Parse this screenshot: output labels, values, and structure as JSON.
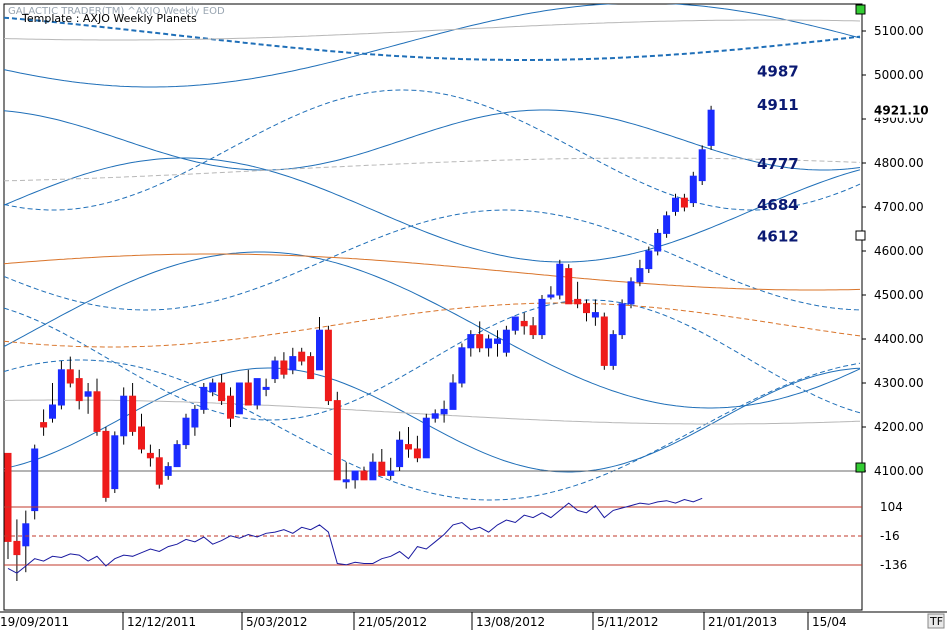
{
  "header": {
    "app": "GALACTIC TRADER(TM)",
    "symbol": "^AXJO Weekly EOD",
    "template": "Template : AXJO Weekly Planets"
  },
  "last_price": "4921.10",
  "corner_badge": "TF",
  "colors": {
    "up_candle": "#1a2bff",
    "down_candle": "#ee1b1b",
    "planet_blue": "#1f6fb8",
    "planet_orange": "#d9742a",
    "planet_gray": "#b7b7b7",
    "indicator": "#1a1aa0",
    "ref_line": "#c0392b"
  },
  "chart_data": {
    "type": "candlestick",
    "price_axis": {
      "min": 4000,
      "max": 5200,
      "ticks": [
        "5100.00",
        "5000.00",
        "4900.00",
        "4800.00",
        "4700.00",
        "4600.00",
        "4500.00",
        "4400.00",
        "4300.00",
        "4200.00",
        "4100.00"
      ]
    },
    "indicator_axis": {
      "ticks": [
        "104",
        "-16",
        "-136"
      ]
    },
    "x_labels": [
      "19/09/2011",
      "12/12/2011",
      "5/03/2012",
      "21/05/2012",
      "13/08/2012",
      "5/11/2012",
      "21/01/2013",
      "15/04"
    ],
    "level_labels": [
      {
        "text": "4987",
        "value": 4987
      },
      {
        "text": "4911",
        "value": 4911
      },
      {
        "text": "4777",
        "value": 4777
      },
      {
        "text": "4684",
        "value": 4684
      },
      {
        "text": "4612",
        "value": 4612
      }
    ],
    "candles": [
      [
        4140,
        4140,
        3900,
        3940
      ],
      [
        3940,
        3990,
        3850,
        3910
      ],
      [
        3930,
        4010,
        3870,
        3980
      ],
      [
        4010,
        4160,
        3990,
        4150
      ],
      [
        4210,
        4240,
        4180,
        4200
      ],
      [
        4220,
        4300,
        4210,
        4250
      ],
      [
        4250,
        4350,
        4240,
        4330
      ],
      [
        4330,
        4360,
        4290,
        4300
      ],
      [
        4310,
        4330,
        4240,
        4260
      ],
      [
        4270,
        4300,
        4230,
        4280
      ],
      [
        4280,
        4310,
        4180,
        4190
      ],
      [
        4190,
        4200,
        4030,
        4040
      ],
      [
        4060,
        4190,
        4050,
        4180
      ],
      [
        4180,
        4290,
        4160,
        4270
      ],
      [
        4270,
        4300,
        4180,
        4190
      ],
      [
        4200,
        4230,
        4140,
        4150
      ],
      [
        4140,
        4160,
        4110,
        4130
      ],
      [
        4130,
        4150,
        4060,
        4070
      ],
      [
        4090,
        4120,
        4080,
        4110
      ],
      [
        4110,
        4170,
        4110,
        4160
      ],
      [
        4160,
        4230,
        4150,
        4220
      ],
      [
        4200,
        4250,
        4180,
        4240
      ],
      [
        4240,
        4300,
        4230,
        4290
      ],
      [
        4280,
        4310,
        4270,
        4300
      ],
      [
        4300,
        4320,
        4250,
        4260
      ],
      [
        4270,
        4290,
        4200,
        4220
      ],
      [
        4230,
        4300,
        4230,
        4300
      ],
      [
        4300,
        4330,
        4250,
        4250
      ],
      [
        4250,
        4310,
        4240,
        4310
      ],
      [
        4290,
        4310,
        4270,
        4290
      ],
      [
        4310,
        4360,
        4300,
        4350
      ],
      [
        4350,
        4370,
        4310,
        4320
      ],
      [
        4330,
        4380,
        4320,
        4360
      ],
      [
        4370,
        4380,
        4340,
        4350
      ],
      [
        4360,
        4370,
        4310,
        4310
      ],
      [
        4330,
        4450,
        4330,
        4420
      ],
      [
        4420,
        4430,
        4250,
        4260
      ],
      [
        4260,
        4280,
        4080,
        4080
      ],
      [
        4080,
        4120,
        4060,
        4080
      ],
      [
        4080,
        4100,
        4060,
        4100
      ],
      [
        4100,
        4110,
        4080,
        4080
      ],
      [
        4080,
        4140,
        4080,
        4120
      ],
      [
        4120,
        4150,
        4090,
        4090
      ],
      [
        4090,
        4130,
        4080,
        4100
      ],
      [
        4110,
        4190,
        4100,
        4170
      ],
      [
        4160,
        4200,
        4130,
        4150
      ],
      [
        4150,
        4180,
        4120,
        4130
      ],
      [
        4130,
        4230,
        4130,
        4220
      ],
      [
        4220,
        4240,
        4210,
        4230
      ],
      [
        4230,
        4260,
        4210,
        4240
      ],
      [
        4240,
        4320,
        4240,
        4300
      ],
      [
        4300,
        4390,
        4290,
        4380
      ],
      [
        4380,
        4420,
        4360,
        4410
      ],
      [
        4410,
        4440,
        4370,
        4380
      ],
      [
        4380,
        4410,
        4360,
        4400
      ],
      [
        4390,
        4420,
        4360,
        4400
      ],
      [
        4370,
        4430,
        4360,
        4420
      ],
      [
        4420,
        4450,
        4410,
        4450
      ],
      [
        4440,
        4460,
        4410,
        4430
      ],
      [
        4430,
        4450,
        4400,
        4410
      ],
      [
        4410,
        4500,
        4400,
        4490
      ],
      [
        4500,
        4520,
        4490,
        4500
      ],
      [
        4500,
        4580,
        4490,
        4570
      ],
      [
        4560,
        4570,
        4480,
        4480
      ],
      [
        4490,
        4530,
        4470,
        4480
      ],
      [
        4480,
        4490,
        4440,
        4460
      ],
      [
        4450,
        4490,
        4430,
        4460
      ],
      [
        4450,
        4460,
        4330,
        4340
      ],
      [
        4340,
        4420,
        4330,
        4410
      ],
      [
        4410,
        4490,
        4400,
        4480
      ],
      [
        4480,
        4540,
        4470,
        4530
      ],
      [
        4530,
        4580,
        4520,
        4560
      ],
      [
        4560,
        4610,
        4550,
        4600
      ],
      [
        4600,
        4650,
        4590,
        4640
      ],
      [
        4640,
        4690,
        4630,
        4680
      ],
      [
        4690,
        4730,
        4680,
        4720
      ],
      [
        4720,
        4730,
        4690,
        4700
      ],
      [
        4710,
        4780,
        4700,
        4770
      ],
      [
        4760,
        4840,
        4750,
        4830
      ],
      [
        4840,
        4930,
        4830,
        4920
      ]
    ],
    "indicator_series": [
      -150,
      -170,
      -140,
      -110,
      -120,
      -100,
      -105,
      -90,
      -95,
      -120,
      -100,
      -140,
      -110,
      -95,
      -100,
      -85,
      -70,
      -80,
      -60,
      -50,
      -30,
      -40,
      -20,
      -50,
      -35,
      -15,
      -25,
      -10,
      -20,
      -5,
      0,
      10,
      -5,
      20,
      10,
      30,
      0,
      -130,
      -135,
      -125,
      -130,
      -130,
      -110,
      -100,
      -80,
      -110,
      -60,
      -70,
      -40,
      -10,
      30,
      40,
      10,
      20,
      0,
      30,
      50,
      40,
      70,
      60,
      80,
      60,
      90,
      120,
      90,
      80,
      110,
      60,
      90,
      100,
      110,
      120,
      115,
      125,
      130,
      120,
      135,
      125,
      140
    ]
  }
}
